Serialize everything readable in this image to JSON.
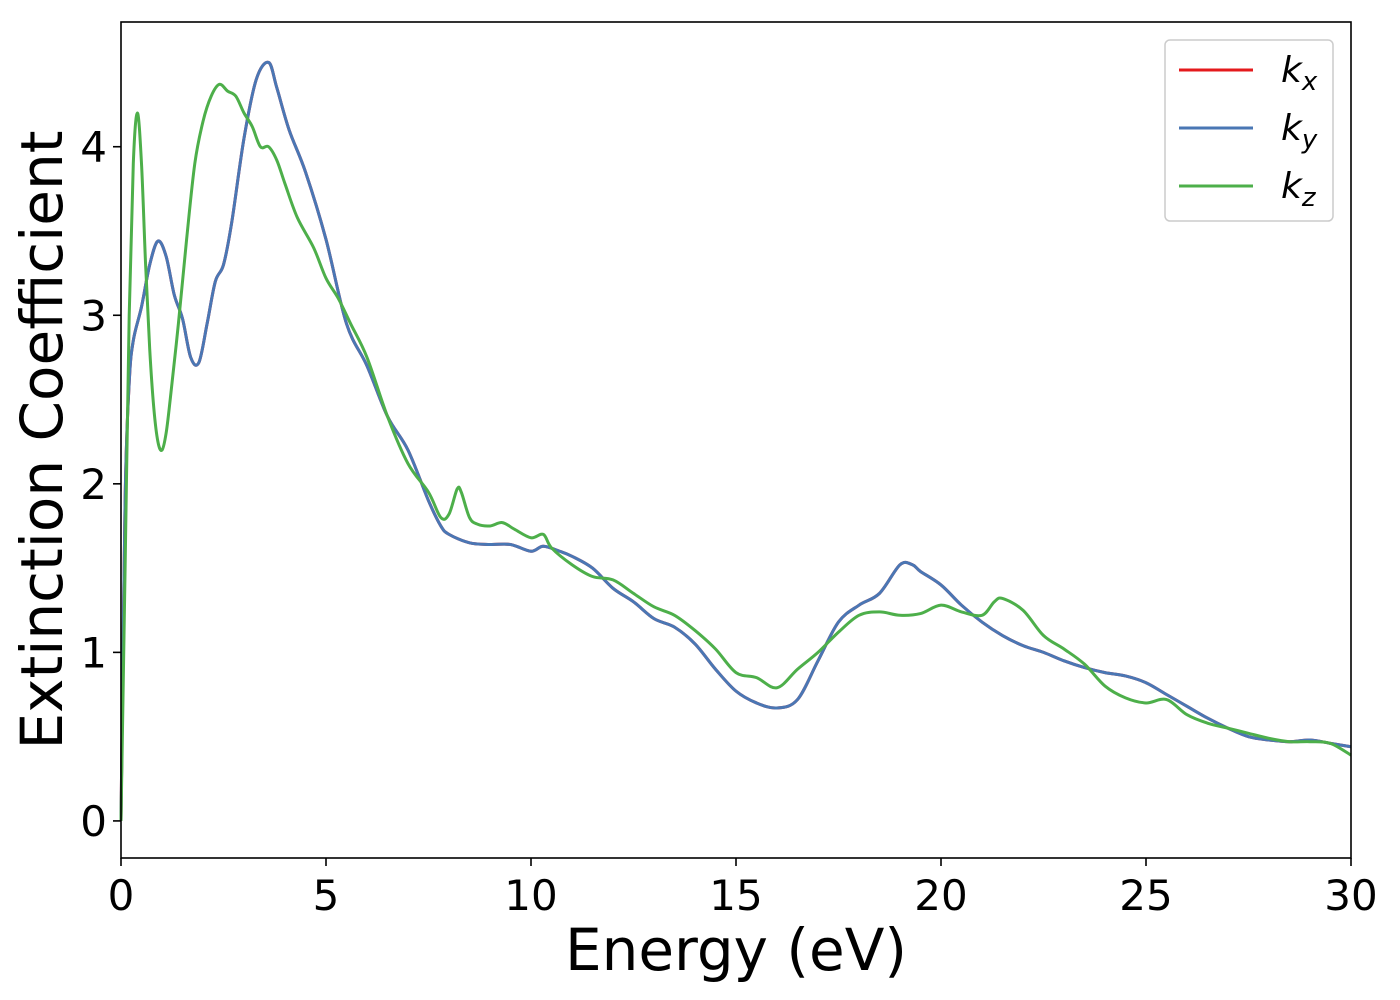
{
  "chart_data": {
    "type": "line",
    "xlabel": "Energy (eV)",
    "ylabel": "Extinction Coefficient",
    "xlim": [
      0,
      30
    ],
    "ylim": [
      -0.22,
      4.74
    ],
    "x_ticks": [
      0,
      5,
      10,
      15,
      20,
      25,
      30
    ],
    "y_ticks": [
      0,
      1,
      2,
      3,
      4
    ],
    "legend_position": "top-right",
    "grid": false,
    "series": [
      {
        "name": "k_x",
        "label_main": "k",
        "label_sub": "x",
        "color": "#e41a1c",
        "x": [
          0,
          0.1,
          0.2,
          0.3,
          0.5,
          0.7,
          0.9,
          1.1,
          1.3,
          1.5,
          1.7,
          1.9,
          2.1,
          2.3,
          2.5,
          2.7,
          3.0,
          3.3,
          3.6,
          3.8,
          4.1,
          4.5,
          5.0,
          5.5,
          6.0,
          6.5,
          7.0,
          7.5,
          7.8,
          8.0,
          8.5,
          9.0,
          9.5,
          10.0,
          10.3,
          10.7,
          11.0,
          11.5,
          12.0,
          12.5,
          13.0,
          13.5,
          14.0,
          14.5,
          15.0,
          15.5,
          16.0,
          16.5,
          17.0,
          17.5,
          18.0,
          18.5,
          19.0,
          19.3,
          19.5,
          20.0,
          20.5,
          21.0,
          21.5,
          22.0,
          22.5,
          23.0,
          23.5,
          24.0,
          24.5,
          25.0,
          25.5,
          26.0,
          26.5,
          27.0,
          27.5,
          28.0,
          28.5,
          29.0,
          29.5,
          30.0
        ],
        "y": [
          0,
          1.9,
          2.6,
          2.85,
          3.05,
          3.3,
          3.44,
          3.35,
          3.12,
          2.98,
          2.75,
          2.72,
          2.95,
          3.2,
          3.3,
          3.55,
          4.05,
          4.4,
          4.5,
          4.35,
          4.1,
          3.85,
          3.45,
          2.95,
          2.7,
          2.4,
          2.2,
          1.9,
          1.75,
          1.7,
          1.65,
          1.64,
          1.64,
          1.6,
          1.63,
          1.6,
          1.57,
          1.5,
          1.38,
          1.3,
          1.2,
          1.15,
          1.05,
          0.9,
          0.77,
          0.7,
          0.67,
          0.72,
          0.95,
          1.18,
          1.28,
          1.35,
          1.52,
          1.52,
          1.48,
          1.4,
          1.28,
          1.18,
          1.1,
          1.04,
          1.0,
          0.95,
          0.91,
          0.88,
          0.86,
          0.82,
          0.75,
          0.68,
          0.61,
          0.55,
          0.5,
          0.48,
          0.47,
          0.48,
          0.46,
          0.44
        ]
      },
      {
        "name": "k_y",
        "label_main": "k",
        "label_sub": "y",
        "color": "#4a77b4",
        "x": [
          0,
          0.1,
          0.2,
          0.3,
          0.5,
          0.7,
          0.9,
          1.1,
          1.3,
          1.5,
          1.7,
          1.9,
          2.1,
          2.3,
          2.5,
          2.7,
          3.0,
          3.3,
          3.6,
          3.8,
          4.1,
          4.5,
          5.0,
          5.5,
          6.0,
          6.5,
          7.0,
          7.5,
          7.8,
          8.0,
          8.5,
          9.0,
          9.5,
          10.0,
          10.3,
          10.7,
          11.0,
          11.5,
          12.0,
          12.5,
          13.0,
          13.5,
          14.0,
          14.5,
          15.0,
          15.5,
          16.0,
          16.5,
          17.0,
          17.5,
          18.0,
          18.5,
          19.0,
          19.3,
          19.5,
          20.0,
          20.5,
          21.0,
          21.5,
          22.0,
          22.5,
          23.0,
          23.5,
          24.0,
          24.5,
          25.0,
          25.5,
          26.0,
          26.5,
          27.0,
          27.5,
          28.0,
          28.5,
          29.0,
          29.5,
          30.0
        ],
        "y": [
          0,
          1.9,
          2.6,
          2.85,
          3.05,
          3.3,
          3.44,
          3.35,
          3.12,
          2.98,
          2.75,
          2.72,
          2.95,
          3.2,
          3.3,
          3.55,
          4.05,
          4.4,
          4.5,
          4.35,
          4.1,
          3.85,
          3.45,
          2.95,
          2.7,
          2.4,
          2.2,
          1.9,
          1.75,
          1.7,
          1.65,
          1.64,
          1.64,
          1.6,
          1.63,
          1.6,
          1.57,
          1.5,
          1.38,
          1.3,
          1.2,
          1.15,
          1.05,
          0.9,
          0.77,
          0.7,
          0.67,
          0.72,
          0.95,
          1.18,
          1.28,
          1.35,
          1.52,
          1.52,
          1.48,
          1.4,
          1.28,
          1.18,
          1.1,
          1.04,
          1.0,
          0.95,
          0.91,
          0.88,
          0.86,
          0.82,
          0.75,
          0.68,
          0.61,
          0.55,
          0.5,
          0.48,
          0.47,
          0.48,
          0.46,
          0.44
        ]
      },
      {
        "name": "k_z",
        "label_main": "k",
        "label_sub": "z",
        "color": "#4daf4a",
        "x": [
          0,
          0.1,
          0.2,
          0.3,
          0.4,
          0.5,
          0.6,
          0.7,
          0.8,
          0.9,
          1.0,
          1.1,
          1.2,
          1.4,
          1.6,
          1.8,
          2.0,
          2.2,
          2.4,
          2.6,
          2.8,
          3.0,
          3.2,
          3.4,
          3.6,
          3.8,
          4.0,
          4.3,
          4.7,
          5.0,
          5.3,
          5.6,
          6.0,
          6.5,
          7.0,
          7.5,
          7.8,
          8.0,
          8.2,
          8.3,
          8.5,
          8.7,
          9.0,
          9.3,
          9.6,
          10.0,
          10.3,
          10.5,
          11.0,
          11.5,
          12.0,
          12.5,
          13.0,
          13.5,
          14.0,
          14.5,
          15.0,
          15.5,
          16.0,
          16.5,
          17.0,
          17.5,
          18.0,
          18.5,
          19.0,
          19.5,
          20.0,
          20.5,
          21.0,
          21.3,
          21.5,
          22.0,
          22.5,
          23.0,
          23.5,
          24.0,
          24.5,
          25.0,
          25.5,
          26.0,
          26.5,
          27.0,
          27.5,
          28.0,
          28.5,
          29.0,
          29.5,
          30.0
        ],
        "y": [
          0,
          1.5,
          3.0,
          3.9,
          4.2,
          3.9,
          3.3,
          2.8,
          2.45,
          2.25,
          2.2,
          2.3,
          2.5,
          2.95,
          3.45,
          3.9,
          4.15,
          4.3,
          4.37,
          4.33,
          4.3,
          4.2,
          4.12,
          4.0,
          4.0,
          3.92,
          3.78,
          3.58,
          3.4,
          3.22,
          3.1,
          2.95,
          2.75,
          2.4,
          2.12,
          1.95,
          1.8,
          1.82,
          1.97,
          1.95,
          1.8,
          1.76,
          1.75,
          1.77,
          1.73,
          1.68,
          1.7,
          1.62,
          1.52,
          1.45,
          1.43,
          1.35,
          1.27,
          1.22,
          1.13,
          1.02,
          0.88,
          0.85,
          0.79,
          0.9,
          1.0,
          1.12,
          1.22,
          1.24,
          1.22,
          1.23,
          1.28,
          1.24,
          1.22,
          1.3,
          1.32,
          1.25,
          1.1,
          1.02,
          0.93,
          0.8,
          0.73,
          0.7,
          0.72,
          0.63,
          0.58,
          0.55,
          0.52,
          0.49,
          0.47,
          0.47,
          0.46,
          0.39
        ]
      }
    ]
  }
}
